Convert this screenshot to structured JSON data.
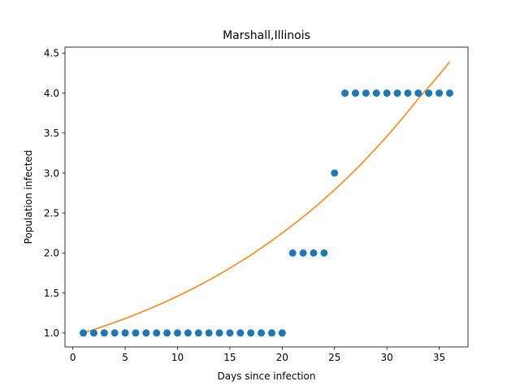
{
  "chart_data": {
    "type": "scatter",
    "title": "Marshall,Illinois",
    "xlabel": "Days since infection",
    "ylabel": "Population infected",
    "xlim": [
      -0.75,
      37.75
    ],
    "ylim": [
      0.825,
      4.575
    ],
    "xticks": [
      0,
      5,
      10,
      15,
      20,
      25,
      30,
      35
    ],
    "xtick_labels": [
      "0",
      "5",
      "10",
      "15",
      "20",
      "25",
      "30",
      "35"
    ],
    "yticks": [
      1.0,
      1.5,
      2.0,
      2.5,
      3.0,
      3.5,
      4.0,
      4.5
    ],
    "ytick_labels": [
      "1.0",
      "1.5",
      "2.0",
      "2.5",
      "3.0",
      "3.5",
      "4.0",
      "4.5"
    ],
    "grid": false,
    "points": {
      "color": "#1f77b4",
      "x": [
        1,
        2,
        3,
        4,
        5,
        6,
        7,
        8,
        9,
        10,
        11,
        12,
        13,
        14,
        15,
        16,
        17,
        18,
        19,
        20,
        21,
        22,
        23,
        24,
        25,
        26,
        27,
        28,
        29,
        30,
        31,
        32,
        33,
        34,
        35,
        36
      ],
      "y": [
        1,
        1,
        1,
        1,
        1,
        1,
        1,
        1,
        1,
        1,
        1,
        1,
        1,
        1,
        1,
        1,
        1,
        1,
        1,
        1,
        2,
        2,
        2,
        2,
        3,
        4,
        4,
        4,
        4,
        4,
        4,
        4,
        4,
        4,
        4,
        4
      ]
    },
    "fit_line": {
      "color": "#ff7f0e",
      "x": [
        1,
        5,
        10,
        15,
        20,
        25,
        30,
        33,
        36
      ],
      "y": [
        1.0,
        1.18,
        1.46,
        1.81,
        2.25,
        2.79,
        3.46,
        3.93,
        4.39
      ]
    }
  }
}
